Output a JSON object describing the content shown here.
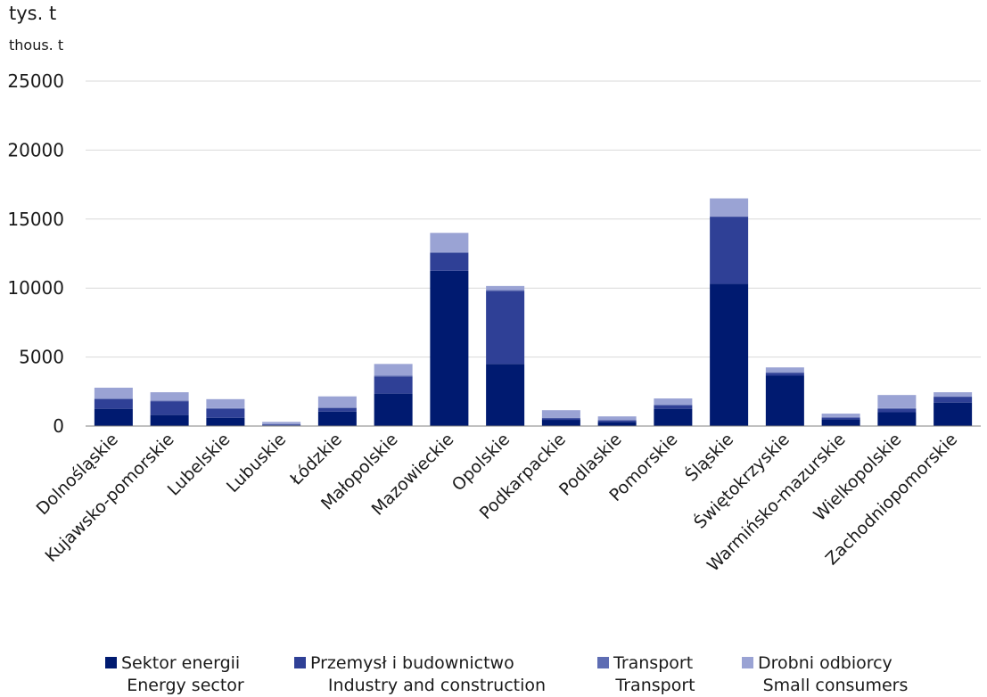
{
  "chart_data": {
    "type": "bar",
    "stacked": true,
    "unit_pl": "tys. t",
    "unit_en": "thous. t",
    "ylim": [
      0,
      25000
    ],
    "yticks": [
      0,
      5000,
      10000,
      15000,
      20000,
      25000
    ],
    "grid": true,
    "legend_position": "bottom",
    "categories": [
      "Dolnośląskie",
      "Kujawsko-pomorskie",
      "Lubelskie",
      "Lubuskie",
      "Łódzkie",
      "Małopolskie",
      "Mazowieckie",
      "Opolskie",
      "Podkarpackie",
      "Podlaskie",
      "Pomorskie",
      "Śląskie",
      "Świętokrzyskie",
      "Warmińsko-mazurskie",
      "Wielkopolskie",
      "Zachodniopomorskie"
    ],
    "series": [
      {
        "name": "Sektor energii",
        "name_en": "Energy sector",
        "color": "#001a70",
        "values": [
          1250,
          800,
          600,
          50,
          1050,
          2350,
          11250,
          4500,
          450,
          300,
          1250,
          10300,
          3650,
          500,
          1000,
          1700
        ]
      },
      {
        "name": "Przemysł i budownictwo",
        "name_en": "Industry and construction",
        "color": "#2f4096",
        "values": [
          700,
          1000,
          650,
          50,
          250,
          1250,
          1300,
          5300,
          100,
          100,
          250,
          4850,
          200,
          100,
          250,
          400
        ]
      },
      {
        "name": "Transport",
        "name_en": "Transport",
        "color": "#5e6db3",
        "values": [
          50,
          50,
          50,
          30,
          50,
          50,
          50,
          50,
          50,
          50,
          50,
          50,
          50,
          50,
          50,
          50
        ]
      },
      {
        "name": "Drobni odbiorcy",
        "name_en": "Small consumers",
        "color": "#9aa3d4",
        "values": [
          780,
          600,
          650,
          170,
          800,
          850,
          1400,
          300,
          550,
          250,
          450,
          1300,
          350,
          250,
          950,
          300
        ]
      }
    ]
  }
}
